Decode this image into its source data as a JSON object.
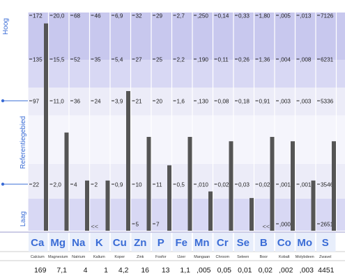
{
  "side_labels": {
    "high": "Hoog",
    "reference": "Referentiegebied",
    "low": "Laag"
  },
  "back_markers": [
    "<<",
    "<<"
  ],
  "colors": {
    "band_dark": "#C8C8EE",
    "band_mid": "#D8D8F4",
    "band_light": "#ECECF8",
    "reference_band": "#F5F5FC",
    "bar": "#555555",
    "accent": "#3A6CD6",
    "symbol_bg": "#E8EEFB"
  },
  "chart_data": {
    "type": "bar",
    "title": "",
    "xlabel": "",
    "ylabel": "",
    "elements": [
      {
        "symbol": "Ca",
        "name": "Calcium",
        "value": "169",
        "bar_top": 172,
        "bar_min": 22,
        "ticks": [
          "172",
          "135",
          "97",
          "22"
        ]
      },
      {
        "symbol": "Mg",
        "name": "Magnesium",
        "value": "7,1",
        "bar_top": 20.0,
        "bar_min": 2.0,
        "ticks": [
          "20,0",
          "15,5",
          "11,0",
          "2,0"
        ]
      },
      {
        "symbol": "Na",
        "name": "Natrium",
        "value": "4",
        "bar_top": 68,
        "bar_min": 4,
        "ticks": [
          "68",
          "52",
          "36",
          "4"
        ]
      },
      {
        "symbol": "K",
        "name": "Kalium",
        "value": "1",
        "bar_top": 46,
        "bar_min": 2,
        "ticks": [
          "46",
          "35",
          "24",
          "2"
        ]
      },
      {
        "symbol": "Cu",
        "name": "Koper",
        "value": "4,2",
        "bar_top": 6.9,
        "bar_min": 0.9,
        "ticks": [
          "6,9",
          "5,4",
          "3,9",
          "0,9"
        ]
      },
      {
        "symbol": "Zn",
        "name": "Zink",
        "value": "16",
        "bar_top": 32,
        "bar_min": 5,
        "ticks": [
          "32",
          "27",
          "21",
          "10",
          "5"
        ]
      },
      {
        "symbol": "P",
        "name": "Fosfor",
        "value": "13",
        "bar_top": 29,
        "bar_min": 7,
        "ticks": [
          "29",
          "25",
          "20",
          "11",
          "7"
        ]
      },
      {
        "symbol": "Fe",
        "name": "IJzer",
        "value": "1,1",
        "bar_top": 2.7,
        "bar_min": 0.5,
        "ticks": [
          "2,7",
          "2,2",
          "1,6",
          "0,5"
        ]
      },
      {
        "symbol": "Mn",
        "name": "Mangaan",
        "value": ",005",
        "bar_top": 0.25,
        "bar_min": 0.01,
        "ticks": [
          ",250",
          ",190",
          ",130",
          ",010"
        ]
      },
      {
        "symbol": "Cr",
        "name": "Chroom",
        "value": "0,05",
        "bar_top": 0.14,
        "bar_min": 0.02,
        "ticks": [
          "0,14",
          "0,11",
          "0,08",
          "0,02"
        ]
      },
      {
        "symbol": "Se",
        "name": "Seleen",
        "value": "0,01",
        "bar_top": 0.33,
        "bar_min": 0.03,
        "ticks": [
          "0,33",
          "0,26",
          "0,18",
          "0,03"
        ]
      },
      {
        "symbol": "B",
        "name": "Boor",
        "value": "0,02",
        "bar_top": 1.8,
        "bar_min": 0.02,
        "ticks": [
          "1,80",
          "1,36",
          "0,91",
          "0,02"
        ]
      },
      {
        "symbol": "Co",
        "name": "Kobalt",
        "value": ",002",
        "bar_top": 0.005,
        "bar_min": 0.0,
        "ticks": [
          ",005",
          ",004",
          ",003",
          ",001",
          ",000"
        ]
      },
      {
        "symbol": "Mo",
        "name": "Molybdeen",
        "value": ",003",
        "bar_top": 0.013,
        "bar_min": 0.001,
        "ticks": [
          ",013",
          ",008",
          ",003",
          ",001"
        ]
      },
      {
        "symbol": "S",
        "name": "Zwavel",
        "value": "4451",
        "bar_top": 7126,
        "bar_min": 2651,
        "ticks": [
          "7126",
          "6231",
          "5336",
          "3546",
          "2651"
        ]
      }
    ],
    "bar_fractions": [
      0.95,
      0.45,
      0.23,
      0.23,
      0.64,
      0.43,
      0.3,
      0.43,
      0.18,
      0.41,
      0.15,
      0.43,
      0.41,
      0.23,
      0.41
    ]
  }
}
